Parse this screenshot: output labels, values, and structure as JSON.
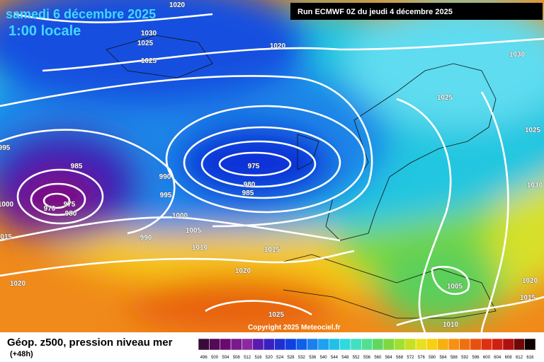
{
  "header": {
    "date": "samedi 6 décembre 2025",
    "time": "1:00 locale",
    "run": "Run ECMWF 0Z du jeudi 4 décembre 2025"
  },
  "isobar_labels": [
    "1020",
    "1030",
    "1025",
    "1025",
    "1020",
    "1030",
    "1025",
    "1025",
    "995",
    "985",
    "990",
    "975",
    "980",
    "985",
    "995",
    "1030",
    "975",
    "970",
    "980",
    "1000",
    "1000",
    "1005",
    "990",
    "1015",
    "1010",
    "1015",
    "1020",
    "1020",
    "1005",
    "1020",
    "1015",
    "1025",
    "1010"
  ],
  "copyright": "Copyright 2025 Meteociel.fr",
  "footer": {
    "title": "Géop. z500, pression niveau mer",
    "lead": "(+48h)"
  },
  "scale": {
    "labels": [
      "496",
      "500",
      "504",
      "508",
      "512",
      "516",
      "520",
      "524",
      "528",
      "532",
      "536",
      "540",
      "544",
      "548",
      "552",
      "556",
      "560",
      "564",
      "568",
      "572",
      "576",
      "580",
      "584",
      "588",
      "592",
      "596",
      "600",
      "604",
      "608",
      "612",
      "616"
    ]
  }
}
